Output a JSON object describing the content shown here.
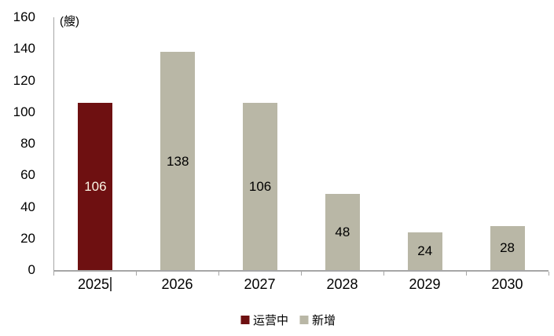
{
  "chart_data": {
    "type": "bar",
    "title": "",
    "xlabel": "",
    "ylabel": "(艘)",
    "categories": [
      "2025",
      "2026",
      "2027",
      "2028",
      "2029",
      "2030"
    ],
    "series": [
      {
        "name": "运营中",
        "values": [
          106,
          null,
          null,
          null,
          null,
          null
        ]
      },
      {
        "name": "新增",
        "values": [
          null,
          138,
          106,
          48,
          24,
          28
        ]
      }
    ],
    "bar_values": [
      106,
      138,
      106,
      48,
      24,
      28
    ],
    "bar_series": [
      "运营中",
      "新增",
      "新增",
      "新增",
      "新增",
      "新增"
    ],
    "ylim": [
      0,
      160
    ],
    "ytick_step": 20,
    "ytick_labels": [
      "160",
      "140",
      "120",
      "100",
      "80",
      "60",
      "40",
      "20",
      "0"
    ],
    "grid": false,
    "legend_position": "bottom",
    "legend": [
      "运营中",
      "新增"
    ],
    "value_labels_shown": true
  },
  "style": {
    "series_colors": {
      "运营中": "#6e1011",
      "新增": "#b9b7a6"
    },
    "value_label_colors": {
      "运营中": "#faf4e4",
      "新增": "#000000"
    },
    "axis_color": "#a6a6a6",
    "text_color": "#000000",
    "background": "#ffffff"
  },
  "x_axis": {
    "text_cursor_after": "2025"
  }
}
